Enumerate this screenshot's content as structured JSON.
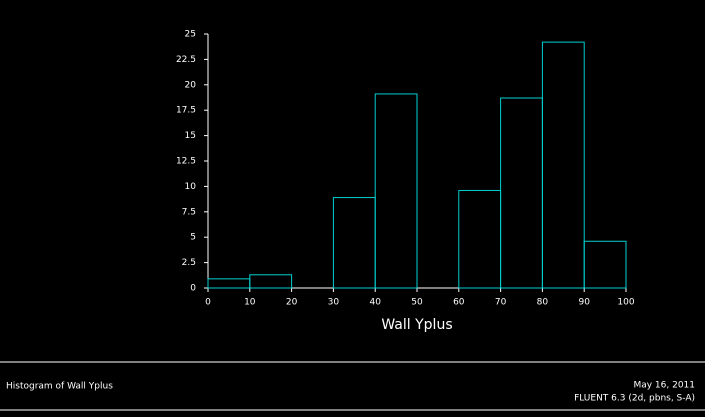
{
  "chart_data": {
    "type": "histogram",
    "xlabel": "Wall Yplus",
    "bins": [
      0,
      10,
      20,
      30,
      40,
      50,
      60,
      70,
      80,
      90,
      100
    ],
    "counts": [
      0.9,
      1.3,
      0,
      8.9,
      19.1,
      0,
      9.6,
      18.7,
      24.2,
      4.6
    ],
    "color": "#00d0d0",
    "xlim": [
      0,
      100
    ],
    "xticks": [
      0,
      10,
      20,
      30,
      40,
      50,
      60,
      70,
      80,
      90,
      100
    ],
    "ylim": [
      0,
      25
    ],
    "yticks": [
      0,
      2.5,
      5,
      7.5,
      10,
      12.5,
      15,
      17.5,
      20,
      22.5,
      25
    ]
  },
  "footer": {
    "title": "Histogram of Wall Yplus",
    "date": "May 16, 2011",
    "solver": "FLUENT 6.3 (2d, pbns, S-A)"
  }
}
